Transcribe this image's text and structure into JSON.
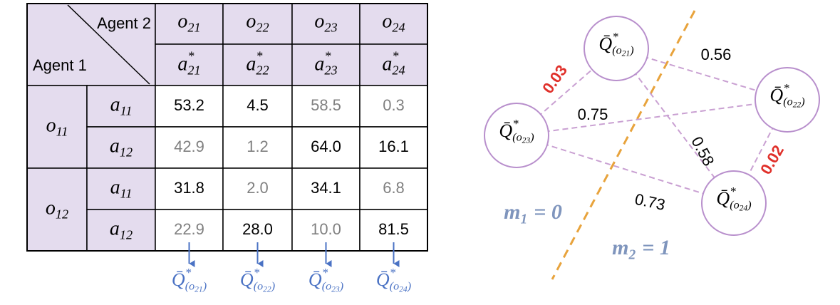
{
  "table": {
    "corner": {
      "top": "Agent 2",
      "bottom": "Agent 1"
    },
    "columns": [
      {
        "obs": {
          "base": "o",
          "sub": "21"
        },
        "act": {
          "base": "a",
          "sup": "*",
          "sub": "21"
        }
      },
      {
        "obs": {
          "base": "o",
          "sub": "22"
        },
        "act": {
          "base": "a",
          "sup": "*",
          "sub": "22"
        }
      },
      {
        "obs": {
          "base": "o",
          "sub": "23"
        },
        "act": {
          "base": "a",
          "sup": "*",
          "sub": "23"
        }
      },
      {
        "obs": {
          "base": "o",
          "sub": "24"
        },
        "act": {
          "base": "a",
          "sup": "*",
          "sub": "24"
        }
      }
    ],
    "row_groups": [
      {
        "obs": {
          "base": "o",
          "sub": "11"
        },
        "rows": [
          {
            "act": {
              "base": "a",
              "sub": "11"
            },
            "cells": [
              {
                "text": "53.2",
                "selected": true
              },
              {
                "text": "4.5",
                "selected": true
              },
              {
                "text": "58.5",
                "selected": false
              },
              {
                "text": "0.3",
                "selected": false
              }
            ]
          },
          {
            "act": {
              "base": "a",
              "sub": "12"
            },
            "cells": [
              {
                "text": "42.9",
                "selected": false
              },
              {
                "text": "1.2",
                "selected": false
              },
              {
                "text": "64.0",
                "selected": true
              },
              {
                "text": "16.1",
                "selected": true
              }
            ]
          }
        ]
      },
      {
        "obs": {
          "base": "o",
          "sub": "12"
        },
        "rows": [
          {
            "act": {
              "base": "a",
              "sub": "11"
            },
            "cells": [
              {
                "text": "31.8",
                "selected": true
              },
              {
                "text": "2.0",
                "selected": false
              },
              {
                "text": "34.1",
                "selected": true
              },
              {
                "text": "6.8",
                "selected": false
              }
            ]
          },
          {
            "act": {
              "base": "a",
              "sub": "12"
            },
            "cells": [
              {
                "text": "22.9",
                "selected": false
              },
              {
                "text": "28.0",
                "selected": true
              },
              {
                "text": "10.0",
                "selected": false
              },
              {
                "text": "81.5",
                "selected": true
              }
            ]
          }
        ]
      }
    ],
    "outputs": [
      {
        "base": "Q̄",
        "sup": "*",
        "sub": {
          "pre": "(",
          "base": "o",
          "sub": "21",
          "post": ")"
        }
      },
      {
        "base": "Q̄",
        "sup": "*",
        "sub": {
          "pre": "(",
          "base": "o",
          "sub": "22",
          "post": ")"
        }
      },
      {
        "base": "Q̄",
        "sup": "*",
        "sub": {
          "pre": "(",
          "base": "o",
          "sub": "23",
          "post": ")"
        }
      },
      {
        "base": "Q̄",
        "sup": "*",
        "sub": {
          "pre": "(",
          "base": "o",
          "sub": "24",
          "post": ")"
        }
      }
    ]
  },
  "graph": {
    "nodes": [
      {
        "label": {
          "base": "Q̄",
          "sup": "*",
          "sub": {
            "pre": "(",
            "base": "o",
            "sub": "21",
            "post": ")"
          }
        }
      },
      {
        "label": {
          "base": "Q̄",
          "sup": "*",
          "sub": {
            "pre": "(",
            "base": "o",
            "sub": "22",
            "post": ")"
          }
        }
      },
      {
        "label": {
          "base": "Q̄",
          "sup": "*",
          "sub": {
            "pre": "(",
            "base": "o",
            "sub": "23",
            "post": ")"
          }
        }
      },
      {
        "label": {
          "base": "Q̄",
          "sup": "*",
          "sub": {
            "pre": "(",
            "base": "o",
            "sub": "24",
            "post": ")"
          }
        }
      }
    ],
    "edges": [
      {
        "label": "0.03",
        "emphasis": true
      },
      {
        "label": "0.56",
        "emphasis": false
      },
      {
        "label": "0.75",
        "emphasis": false
      },
      {
        "label": "0.58",
        "emphasis": false
      },
      {
        "label": "0.02",
        "emphasis": true
      },
      {
        "label": "0.73",
        "emphasis": false
      }
    ],
    "partitions": [
      {
        "base": "m",
        "sub": "1",
        "rest": "= 0"
      },
      {
        "base": "m",
        "sub": "2",
        "rest": "= 1"
      }
    ]
  }
}
